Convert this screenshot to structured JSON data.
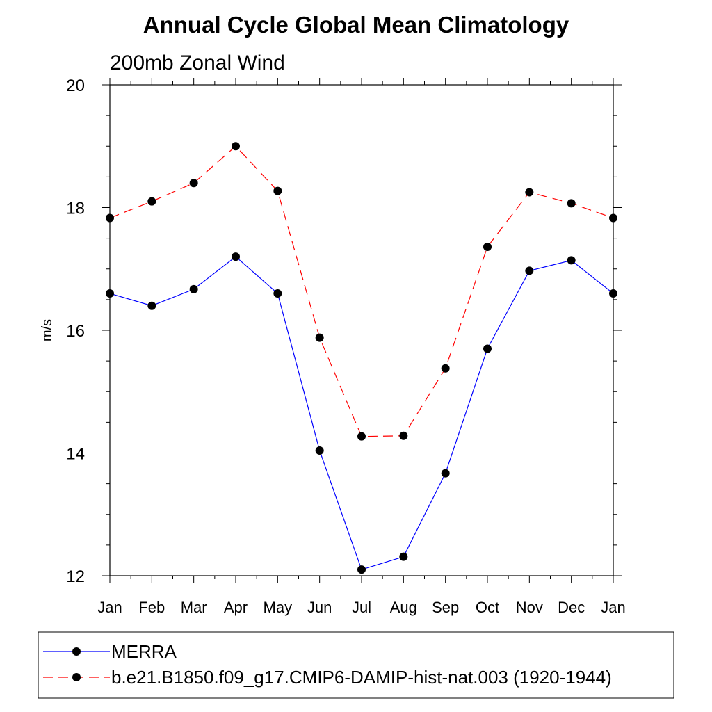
{
  "chart_data": {
    "type": "line",
    "title": "Annual Cycle Global Mean Climatology",
    "subtitle": "200mb Zonal Wind",
    "ylabel": "m/s",
    "xlabel": "",
    "categories": [
      "Jan",
      "Feb",
      "Mar",
      "Apr",
      "May",
      "Jun",
      "Jul",
      "Aug",
      "Sep",
      "Oct",
      "Nov",
      "Dec",
      "Jan"
    ],
    "ylim": [
      12,
      20
    ],
    "yticks": [
      12,
      14,
      16,
      18,
      20
    ],
    "grid": false,
    "legend_position": "bottom",
    "series": [
      {
        "name": "MERRA",
        "color": "#0000ff",
        "dash": "solid",
        "marker": "filled-circle",
        "values": [
          16.6,
          16.4,
          16.67,
          17.2,
          16.6,
          14.04,
          12.1,
          12.31,
          13.67,
          15.7,
          16.97,
          17.14,
          16.6
        ]
      },
      {
        "name": "b.e21.B1850.f09_g17.CMIP6-DAMIP-hist-nat.003 (1920-1944)",
        "color": "#ff0000",
        "dash": "dashed",
        "marker": "filled-circle",
        "values": [
          17.83,
          18.1,
          18.4,
          19.0,
          18.27,
          15.88,
          14.27,
          14.28,
          15.38,
          17.36,
          18.25,
          18.07,
          17.83
        ]
      }
    ]
  }
}
